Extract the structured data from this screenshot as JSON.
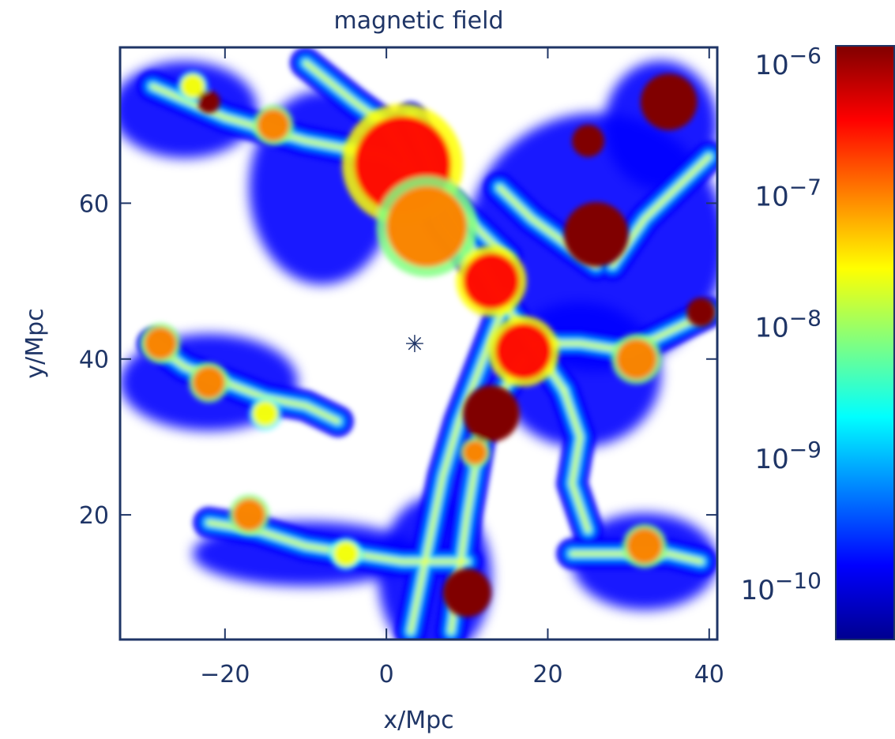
{
  "chart_data": {
    "type": "heatmap",
    "title": "magnetic field",
    "xlabel": "x/Mpc",
    "ylabel": "y/Mpc",
    "xlim": [
      -33,
      41
    ],
    "ylim": [
      4,
      80
    ],
    "x_ticks": [
      -20,
      0,
      20,
      40
    ],
    "x_tick_labels": [
      "−20",
      "0",
      "20",
      "40"
    ],
    "y_ticks": [
      20,
      40,
      60
    ],
    "y_tick_labels": [
      "20",
      "40",
      "60"
    ],
    "colorbar": {
      "scale": "log",
      "range": [
        3e-11,
        1e-06
      ],
      "tick_values": [
        1e-06,
        1e-07,
        1e-08,
        1e-09,
        1e-10
      ],
      "tick_labels": [
        {
          "base": "10",
          "exp": "−6"
        },
        {
          "base": "10",
          "exp": "−7"
        },
        {
          "base": "10",
          "exp": "−8"
        },
        {
          "base": "10",
          "exp": "−9"
        },
        {
          "base": "10",
          "exp": "−10"
        }
      ],
      "colormap": [
        "#00008f",
        "#0000ff",
        "#0080ff",
        "#00ffff",
        "#80ff80",
        "#ffff00",
        "#ff8000",
        "#ff0000",
        "#800000"
      ]
    },
    "grid": false,
    "marker": {
      "symbol": "✳",
      "x": 3.5,
      "y": 42
    },
    "filaments": [
      {
        "x": [
          -29,
          -20,
          -10,
          0,
          8,
          15
        ],
        "y": [
          75,
          71,
          68,
          66,
          60,
          53
        ]
      },
      {
        "x": [
          -10,
          -4,
          0,
          4,
          7,
          11
        ],
        "y": [
          78,
          73,
          70,
          63,
          57,
          52
        ]
      },
      {
        "x": [
          3,
          5,
          7,
          10,
          14,
          18,
          22
        ],
        "y": [
          71,
          66,
          60,
          55,
          48,
          42,
          36
        ]
      },
      {
        "x": [
          22,
          24,
          23,
          25
        ],
        "y": [
          36,
          30,
          24,
          18
        ]
      },
      {
        "x": [
          -29,
          -25,
          -20,
          -15,
          -10,
          -6
        ],
        "y": [
          42,
          39,
          37,
          35,
          34,
          32
        ]
      },
      {
        "x": [
          -22,
          -16,
          -10,
          -4,
          2,
          10
        ],
        "y": [
          19,
          18,
          16,
          15,
          14,
          14
        ]
      },
      {
        "x": [
          15,
          12,
          9,
          7,
          5,
          3
        ],
        "y": [
          48,
          40,
          32,
          25,
          15,
          5
        ]
      },
      {
        "x": [
          8,
          10,
          12,
          17
        ],
        "y": [
          5,
          20,
          32,
          40
        ]
      },
      {
        "x": [
          18,
          24,
          30,
          36,
          40
        ],
        "y": [
          42,
          42,
          41,
          44,
          46
        ]
      },
      {
        "x": [
          23,
          26,
          31,
          35,
          39
        ],
        "y": [
          15,
          15,
          15,
          15,
          14
        ]
      },
      {
        "x": [
          14,
          18,
          22,
          26
        ],
        "y": [
          62,
          58,
          55,
          52
        ]
      },
      {
        "x": [
          28,
          32,
          36,
          40
        ],
        "y": [
          52,
          58,
          62,
          66
        ]
      }
    ],
    "hotspots": [
      {
        "x": 2,
        "y": 65,
        "r": 6,
        "level": 0.85
      },
      {
        "x": 5,
        "y": 57,
        "r": 5,
        "level": 0.8
      },
      {
        "x": 13,
        "y": 50,
        "r": 3.5,
        "level": 0.9
      },
      {
        "x": 17,
        "y": 41,
        "r": 3.5,
        "level": 0.85
      },
      {
        "x": 31,
        "y": 40,
        "r": 2.5,
        "level": 0.8
      },
      {
        "x": 11,
        "y": 28,
        "r": 1.5,
        "level": 0.8
      },
      {
        "x": -28,
        "y": 42,
        "r": 2,
        "level": 0.75
      },
      {
        "x": -22,
        "y": 37,
        "r": 2,
        "level": 0.7
      },
      {
        "x": -15,
        "y": 33,
        "r": 1.6,
        "level": 0.65
      },
      {
        "x": -17,
        "y": 20,
        "r": 2,
        "level": 0.7
      },
      {
        "x": -5,
        "y": 15,
        "r": 1.6,
        "level": 0.65
      },
      {
        "x": 32,
        "y": 16,
        "r": 2.2,
        "level": 0.75
      },
      {
        "x": -14,
        "y": 70,
        "r": 2,
        "level": 0.75
      },
      {
        "x": -24,
        "y": 75,
        "r": 1.5,
        "level": 0.65
      }
    ],
    "saturated_regions": [
      {
        "x": 13,
        "y": 33,
        "r": 3.5
      },
      {
        "x": 26,
        "y": 56,
        "r": 4
      },
      {
        "x": 35,
        "y": 73,
        "r": 3.5
      },
      {
        "x": 10,
        "y": 10,
        "r": 3
      },
      {
        "x": 39,
        "y": 46,
        "r": 1.8
      },
      {
        "x": -22,
        "y": 73,
        "r": 1.4
      },
      {
        "x": 25,
        "y": 68,
        "r": 2
      }
    ],
    "blue_regions": [
      {
        "x": 26,
        "y": 55,
        "rx": 16,
        "ry": 16
      },
      {
        "x": 24,
        "y": 38,
        "rx": 10,
        "ry": 9
      },
      {
        "x": -8,
        "y": 62,
        "rx": 9,
        "ry": 12
      },
      {
        "x": -22,
        "y": 37,
        "rx": 11,
        "ry": 6
      },
      {
        "x": -10,
        "y": 15,
        "rx": 14,
        "ry": 4
      },
      {
        "x": 32,
        "y": 14,
        "rx": 9,
        "ry": 6
      },
      {
        "x": 6,
        "y": 12,
        "rx": 7,
        "ry": 10
      },
      {
        "x": -25,
        "y": 72,
        "rx": 9,
        "ry": 6
      },
      {
        "x": 34,
        "y": 70,
        "rx": 7,
        "ry": 8
      }
    ]
  }
}
